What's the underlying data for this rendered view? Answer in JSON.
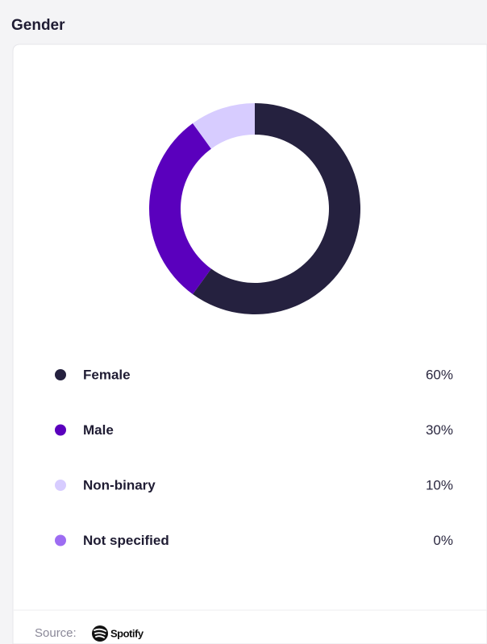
{
  "chart_data": {
    "type": "pie",
    "title": "Gender",
    "categories": [
      "Female",
      "Male",
      "Non-binary",
      "Not specified"
    ],
    "values": [
      60,
      30,
      10,
      0
    ],
    "value_labels": [
      "60%",
      "30%",
      "10%",
      "0%"
    ],
    "colors": [
      "#25213f",
      "#5a00bd",
      "#d7ccff",
      "#9d6cf2"
    ],
    "source_label": "Source:",
    "source_brand": "Spotify"
  }
}
